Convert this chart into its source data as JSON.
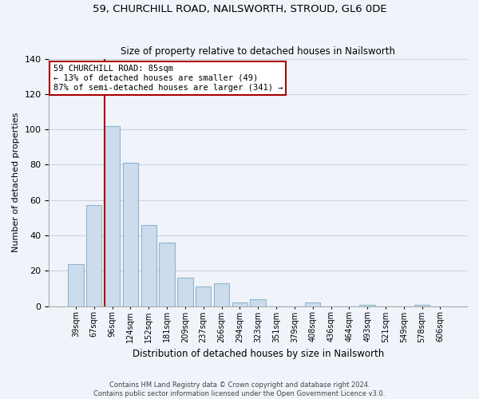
{
  "title": "59, CHURCHILL ROAD, NAILSWORTH, STROUD, GL6 0DE",
  "subtitle": "Size of property relative to detached houses in Nailsworth",
  "xlabel": "Distribution of detached houses by size in Nailsworth",
  "ylabel": "Number of detached properties",
  "bar_labels": [
    "39sqm",
    "67sqm",
    "96sqm",
    "124sqm",
    "152sqm",
    "181sqm",
    "209sqm",
    "237sqm",
    "266sqm",
    "294sqm",
    "323sqm",
    "351sqm",
    "379sqm",
    "408sqm",
    "436sqm",
    "464sqm",
    "493sqm",
    "521sqm",
    "549sqm",
    "578sqm",
    "606sqm"
  ],
  "bar_values": [
    24,
    57,
    102,
    81,
    46,
    36,
    16,
    11,
    13,
    2,
    4,
    0,
    0,
    2,
    0,
    0,
    1,
    0,
    0,
    1,
    0
  ],
  "bar_color": "#ccdcec",
  "bar_edge_color": "#90b4cc",
  "vline_color": "#aa0000",
  "ylim": [
    0,
    140
  ],
  "yticks": [
    0,
    20,
    40,
    60,
    80,
    100,
    120,
    140
  ],
  "annotation_line1": "59 CHURCHILL ROAD: 85sqm",
  "annotation_line2": "← 13% of detached houses are smaller (49)",
  "annotation_line3": "87% of semi-detached houses are larger (341) →",
  "footer_line1": "Contains HM Land Registry data © Crown copyright and database right 2024.",
  "footer_line2": "Contains public sector information licensed under the Open Government Licence v3.0.",
  "background_color": "#f0f4fa",
  "grid_color": "#c8d4e0"
}
